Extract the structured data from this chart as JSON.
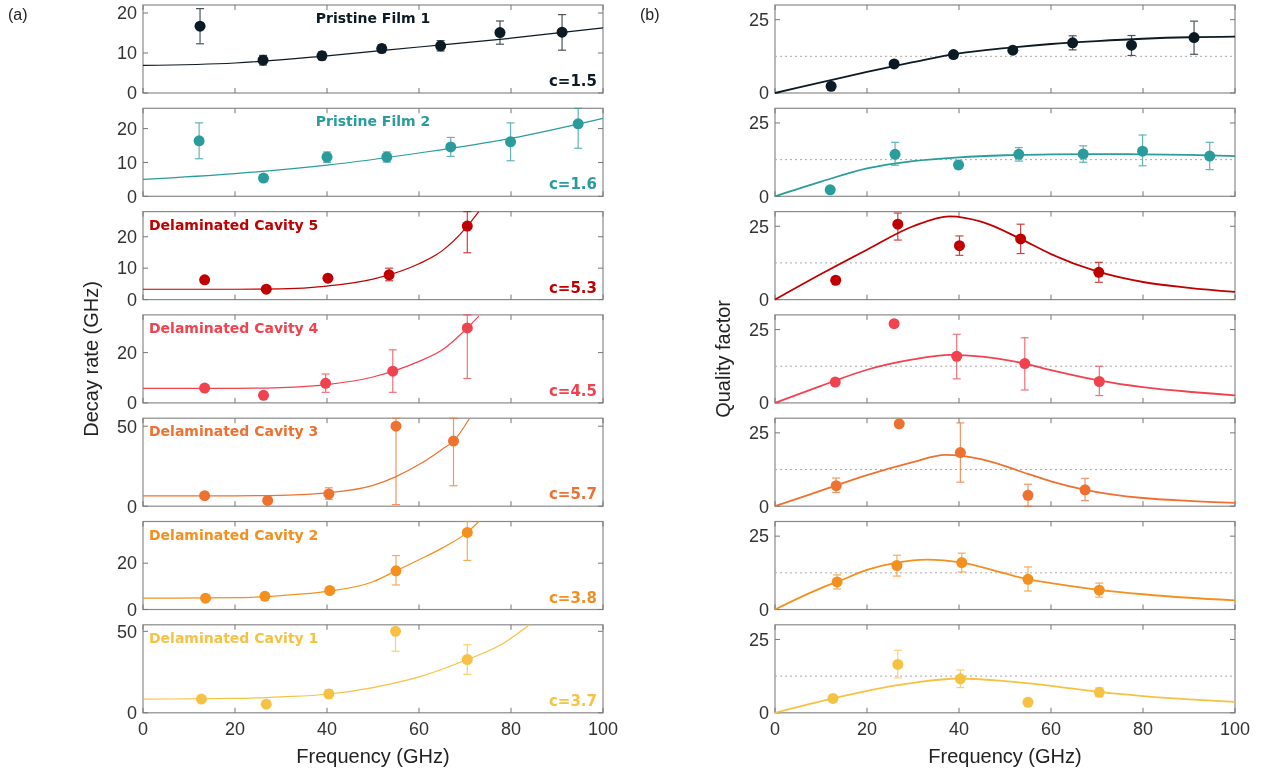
{
  "chart_data": [
    {
      "type": "scatter",
      "title": "(a)",
      "xlim": [
        0,
        100
      ],
      "xticks": [
        0,
        20,
        40,
        60,
        80,
        100
      ],
      "ylim": [
        0,
        22
      ],
      "yticks": [
        0,
        10,
        20
      ],
      "tick_labels": "y",
      "annotations": [
        "c=1.5"
      ],
      "series": [
        {
          "name": "Pristine Film 1",
          "marker": "circle",
          "color": "#0b1a23",
          "x": [
            12.4,
            26.1,
            38.9,
            51.9,
            64.7,
            77.6,
            91.1
          ],
          "values": [
            16.7,
            8.2,
            9.3,
            11.1,
            11.8,
            15.1,
            15.2
          ],
          "errors": [
            [
              12.3,
              21.1
            ],
            [
              7,
              9.4
            ],
            [
              8.3,
              10.3
            ],
            [
              10.1,
              12.1
            ],
            [
              10.5,
              13.1
            ],
            [
              12.2,
              18
            ],
            [
              10.7,
              19.6
            ]
          ]
        },
        {
          "type": "line",
          "color": "#0b1a23",
          "x": [
            0,
            20,
            40,
            60,
            80,
            100
          ],
          "values": [
            6.9,
            7.5,
            9.3,
            11.5,
            13.7,
            16.3
          ]
        }
      ]
    },
    {
      "type": "scatter",
      "xlim": [
        0,
        100
      ],
      "xticks": [
        0,
        20,
        40,
        60,
        80,
        100
      ],
      "ylim": [
        0,
        26
      ],
      "yticks": [
        0,
        10,
        20
      ],
      "tick_labels": "y",
      "annotations": [
        "c=1.6"
      ],
      "series": [
        {
          "name": "Pristine Film 2",
          "marker": "circle",
          "color": "#2a9c9c",
          "x": [
            12.2,
            26.2,
            40,
            53,
            66.9,
            79.9,
            94.6
          ],
          "values": [
            16.4,
            5.4,
            11.6,
            11.6,
            14.6,
            16.1,
            21.4
          ],
          "errors": [
            [
              11.1,
              21.7
            ],
            [
              4.4,
              6.4
            ],
            [
              10,
              13.1
            ],
            [
              10.1,
              13.1
            ],
            [
              11.8,
              17.4
            ],
            [
              10.5,
              21.7
            ],
            [
              14.2,
              26
            ]
          ]
        },
        {
          "type": "line",
          "color": "#2a9c9c",
          "x": [
            0,
            20,
            40,
            60,
            80,
            100
          ],
          "values": [
            5,
            6.7,
            9.2,
            12.8,
            17.1,
            23
          ]
        }
      ]
    },
    {
      "type": "scatter",
      "xlim": [
        0,
        100
      ],
      "xticks": [
        0,
        20,
        40,
        60,
        80,
        100
      ],
      "ylim": [
        0,
        28
      ],
      "yticks": [
        0,
        10,
        20
      ],
      "tick_labels": "y",
      "annotations": [
        "c=5.3"
      ],
      "series": [
        {
          "name": "Delaminated Cavity 5",
          "marker": "circle",
          "color": "#c00000",
          "x": [
            13.4,
            26.8,
            40.2,
            53.5,
            70.5
          ],
          "values": [
            6.3,
            3.3,
            6.8,
            7.9,
            23.4
          ],
          "errors": [
            null,
            null,
            null,
            [
              6,
              10
            ],
            [
              14.9,
              28
            ]
          ]
        },
        {
          "type": "line",
          "color": "#c00000",
          "x": [
            0,
            20,
            30,
            40,
            50,
            60,
            65,
            70,
            73
          ],
          "values": [
            3.3,
            3.3,
            3.4,
            4.3,
            6.5,
            11.4,
            15.5,
            22.5,
            28
          ]
        }
      ]
    },
    {
      "type": "scatter",
      "ylabel": "Decay rate (GHz)",
      "xlim": [
        0,
        100
      ],
      "xticks": [
        0,
        20,
        40,
        60,
        80,
        100
      ],
      "ylim": [
        0,
        35
      ],
      "yticks": [
        0,
        20
      ],
      "tick_labels": "y",
      "annotations": [
        "c=4.5"
      ],
      "series": [
        {
          "name": "Delaminated Cavity 4",
          "marker": "circle",
          "color": "#f0424f",
          "x": [
            13.4,
            26.2,
            39.7,
            54.3,
            70.5
          ],
          "values": [
            5.9,
            3,
            7.8,
            12.6,
            29.8
          ],
          "errors": [
            null,
            null,
            [
              4.2,
              11.5
            ],
            [
              4.2,
              21.1
            ],
            [
              9.7,
              35
            ]
          ]
        },
        {
          "type": "line",
          "color": "#f0424f",
          "x": [
            0,
            20,
            30,
            40,
            50,
            60,
            65,
            70.5,
            73
          ],
          "values": [
            5.8,
            5.8,
            6.1,
            7.3,
            10.3,
            16.5,
            21,
            29.8,
            34.5
          ]
        }
      ]
    },
    {
      "type": "scatter",
      "xlim": [
        0,
        100
      ],
      "xticks": [
        0,
        20,
        40,
        60,
        80,
        100
      ],
      "ylim": [
        0,
        55
      ],
      "yticks": [
        0,
        50
      ],
      "tick_labels": "y",
      "annotations": [
        "c=5.7"
      ],
      "series": [
        {
          "name": "Delaminated Cavity 3",
          "marker": "circle",
          "color": "#ef7130",
          "x": [
            13.4,
            27.1,
            40.4,
            55,
            67.5
          ],
          "values": [
            6.6,
            3.6,
            7.7,
            50,
            40.7
          ],
          "errors": [
            null,
            null,
            [
              4.3,
              11.5
            ],
            [
              1,
              55
            ],
            [
              12.8,
              55
            ]
          ]
        },
        {
          "type": "line",
          "color": "#ef7130",
          "x": [
            0,
            20,
            30,
            40,
            50,
            55,
            60,
            65,
            67.5,
            71
          ],
          "values": [
            6.5,
            6.5,
            6.8,
            8.3,
            13,
            18.5,
            26,
            35.5,
            40.7,
            55
          ]
        }
      ]
    },
    {
      "type": "scatter",
      "xlim": [
        0,
        100
      ],
      "xticks": [
        0,
        20,
        40,
        60,
        80,
        100
      ],
      "ylim": [
        0,
        38
      ],
      "yticks": [
        0,
        20
      ],
      "tick_labels": "y",
      "annotations": [
        "c=3.8"
      ],
      "series": [
        {
          "name": "Delaminated Cavity 2",
          "marker": "circle",
          "color": "#f39020",
          "x": [
            13.6,
            26.5,
            40.6,
            55,
            70.5
          ],
          "values": [
            4.9,
            5.7,
            8.2,
            16.7,
            33.3
          ],
          "errors": [
            null,
            null,
            null,
            [
              10.6,
              23.3
            ],
            [
              21.2,
              38
            ]
          ]
        },
        {
          "type": "line",
          "color": "#f39020",
          "x": [
            0,
            20,
            30,
            40,
            50,
            55,
            60,
            65,
            70.5,
            73
          ],
          "values": [
            4.9,
            5.1,
            6,
            7.8,
            12,
            16.7,
            21.5,
            26.5,
            33.3,
            38
          ]
        }
      ]
    },
    {
      "type": "scatter",
      "xlabel": "Frequency (GHz)",
      "xlim": [
        0,
        100
      ],
      "xticks": [
        0,
        20,
        40,
        60,
        80,
        100
      ],
      "ylim": [
        0,
        54
      ],
      "yticks": [
        0,
        50
      ],
      "annotations": [
        "c=3.7"
      ],
      "series": [
        {
          "name": "Delaminated Cavity 1",
          "marker": "circle",
          "color": "#f7c244",
          "x": [
            12.7,
            26.8,
            40.4,
            54.9,
            70.5
          ],
          "values": [
            8.4,
            5.3,
            11.6,
            50,
            32.7
          ],
          "errors": [
            null,
            null,
            [
              9.1,
              14.1
            ],
            [
              37.8,
              50
            ],
            [
              23.6,
              41.8
            ]
          ]
        },
        {
          "type": "line",
          "color": "#f7c244",
          "x": [
            0,
            20,
            30,
            40,
            50,
            60,
            70.5,
            78,
            84
          ],
          "values": [
            8.4,
            8.8,
            9.8,
            11.4,
            15.5,
            22,
            32.7,
            42,
            54
          ]
        }
      ]
    },
    {
      "type": "scatter",
      "title": "(b)",
      "xlim": [
        0,
        100
      ],
      "xticks": [
        0,
        20,
        40,
        60,
        80,
        100
      ],
      "ylim": [
        0,
        30
      ],
      "yticks": [
        0,
        25
      ],
      "tick_labels": "y",
      "ref_lines": [
        {
          "axis": "y",
          "value": 12.5,
          "color": "#aaaaaa",
          "line_style": "dotted"
        }
      ],
      "series": [
        {
          "marker": "circle",
          "color": "#0b1a23",
          "x": [
            12.2,
            25.9,
            38.8,
            51.7,
            64.7,
            77.5,
            91.1
          ],
          "values": [
            2.3,
            9.9,
            13.1,
            14.6,
            17.1,
            16.3,
            18.9
          ],
          "errors": [
            null,
            [
              8.9,
              10.9
            ],
            [
              12.1,
              14.1
            ],
            [
              13.6,
              15.6
            ],
            [
              14.7,
              19.5
            ],
            [
              12.8,
              19.6
            ],
            [
              13.2,
              24.5
            ]
          ]
        },
        {
          "type": "line",
          "color": "#0b1a23",
          "x": [
            0,
            10,
            20,
            30,
            40,
            50,
            60,
            70,
            80,
            90,
            100
          ],
          "values": [
            0,
            3.6,
            7.2,
            10.5,
            13.5,
            15.3,
            16.7,
            17.7,
            18.5,
            19,
            19.2
          ]
        }
      ]
    },
    {
      "type": "scatter",
      "xlim": [
        0,
        100
      ],
      "xticks": [
        0,
        20,
        40,
        60,
        80,
        100
      ],
      "ylim": [
        0,
        30
      ],
      "yticks": [
        0,
        25
      ],
      "tick_labels": "y",
      "ref_lines": [
        {
          "axis": "y",
          "value": 12.5,
          "color": "#aaaaaa",
          "line_style": "dotted"
        }
      ],
      "series": [
        {
          "marker": "circle",
          "color": "#2a9c9c",
          "x": [
            12,
            26.1,
            39.9,
            53,
            67,
            79.9,
            94.5
          ],
          "values": [
            2.2,
            14.3,
            10.7,
            14.3,
            14.4,
            15.4,
            13.7
          ],
          "errors": [
            null,
            [
              10.6,
              18.4
            ],
            [
              9.4,
              12
            ],
            [
              12,
              16.6
            ],
            [
              11.6,
              17.2
            ],
            [
              10.4,
              20.9
            ],
            [
              9.1,
              18.4
            ]
          ]
        },
        {
          "type": "line",
          "color": "#2a9c9c",
          "x": [
            0,
            10,
            20,
            30,
            40,
            50,
            60,
            70,
            80,
            90,
            100
          ],
          "values": [
            0,
            5,
            9.5,
            12,
            13.3,
            14,
            14.3,
            14.4,
            14.3,
            14.1,
            13.7
          ]
        }
      ]
    },
    {
      "type": "scatter",
      "xlim": [
        0,
        100
      ],
      "xticks": [
        0,
        20,
        40,
        60,
        80,
        100
      ],
      "ylim": [
        0,
        30
      ],
      "yticks": [
        0,
        25
      ],
      "tick_labels": "y",
      "ref_lines": [
        {
          "axis": "y",
          "value": 12.5,
          "color": "#aaaaaa",
          "line_style": "dotted"
        }
      ],
      "series": [
        {
          "marker": "circle",
          "color": "#c00000",
          "x": [
            13.2,
            26.7,
            40.1,
            53.4,
            70.4
          ],
          "values": [
            6.6,
            25.7,
            18.4,
            20.7,
            9.3
          ],
          "errors": [
            null,
            [
              20.3,
              29.5
            ],
            [
              15.1,
              21.7
            ],
            [
              15.7,
              25.7
            ],
            [
              5.9,
              12.7
            ]
          ]
        },
        {
          "type": "line",
          "color": "#c00000",
          "x": [
            0,
            10,
            20,
            30,
            38,
            45,
            53.4,
            60,
            70,
            80,
            90,
            100
          ],
          "values": [
            0,
            8.7,
            17,
            25,
            28.4,
            26.5,
            20.7,
            15.5,
            9.6,
            6,
            4,
            2.6
          ]
        }
      ]
    },
    {
      "type": "scatter",
      "ylabel": "Quality factor",
      "xlim": [
        0,
        100
      ],
      "xticks": [
        0,
        20,
        40,
        60,
        80,
        100
      ],
      "ylim": [
        0,
        30
      ],
      "yticks": [
        0,
        25
      ],
      "tick_labels": "y",
      "ref_lines": [
        {
          "axis": "y",
          "value": 12.5,
          "color": "#aaaaaa",
          "line_style": "dotted"
        }
      ],
      "series": [
        {
          "marker": "circle",
          "color": "#f0424f",
          "x": [
            13.1,
            25.9,
            39.5,
            54.3,
            70.5
          ],
          "values": [
            7.1,
            27,
            15.9,
            13.4,
            7.3
          ],
          "errors": [
            [
              5.9,
              8.3
            ],
            null,
            [
              8.2,
              23.4
            ],
            [
              4.4,
              22.2
            ],
            [
              2.5,
              12.5
            ]
          ]
        },
        {
          "type": "line",
          "color": "#f0424f",
          "x": [
            0,
            10,
            20,
            30,
            38,
            45,
            54.3,
            60,
            70,
            80,
            90,
            100
          ],
          "values": [
            0,
            5.8,
            11.3,
            14.8,
            16.4,
            15.8,
            13.4,
            11.2,
            7.8,
            5.4,
            3.8,
            2.6
          ]
        }
      ]
    },
    {
      "type": "scatter",
      "xlim": [
        0,
        100
      ],
      "xticks": [
        0,
        20,
        40,
        60,
        80,
        100
      ],
      "ylim": [
        0,
        30
      ],
      "yticks": [
        0,
        25
      ],
      "tick_labels": "y",
      "ref_lines": [
        {
          "axis": "y",
          "value": 12.5,
          "color": "#aaaaaa",
          "line_style": "dotted"
        }
      ],
      "series": [
        {
          "marker": "circle",
          "color": "#ef7130",
          "x": [
            13.3,
            27,
            40.3,
            55,
            67.4
          ],
          "values": [
            7,
            28.1,
            18.3,
            3.7,
            5.6
          ],
          "errors": [
            [
              4.7,
              9.6
            ],
            null,
            [
              8.2,
              28.4
            ],
            [
              0,
              7.5
            ],
            [
              1.9,
              9.5
            ]
          ]
        },
        {
          "type": "line",
          "color": "#ef7130",
          "x": [
            0,
            10,
            20,
            30,
            37,
            45,
            55,
            60,
            67.4,
            80,
            90,
            100
          ],
          "values": [
            0,
            5.3,
            10.6,
            15,
            17.5,
            16,
            11,
            8.5,
            5.6,
            2.8,
            1.8,
            1.1
          ]
        }
      ]
    },
    {
      "type": "scatter",
      "xlim": [
        0,
        100
      ],
      "xticks": [
        0,
        20,
        40,
        60,
        80,
        100
      ],
      "ylim": [
        0,
        30
      ],
      "yticks": [
        0,
        25
      ],
      "tick_labels": "y",
      "ref_lines": [
        {
          "axis": "y",
          "value": 12.5,
          "color": "#aaaaaa",
          "line_style": "dotted"
        }
      ],
      "series": [
        {
          "marker": "circle",
          "color": "#f39020",
          "x": [
            13.5,
            26.5,
            40.6,
            55,
            70.5
          ],
          "values": [
            9.4,
            15,
            16,
            10.3,
            6.6
          ],
          "errors": [
            [
              7,
              11.8
            ],
            [
              11.4,
              18.5
            ],
            [
              12.8,
              19.2
            ],
            [
              6.3,
              14.5
            ],
            [
              4.2,
              9
            ]
          ]
        },
        {
          "type": "line",
          "color": "#f39020",
          "x": [
            0,
            10,
            13.5,
            20,
            26.5,
            33,
            40.6,
            50,
            55,
            60,
            70,
            80,
            90,
            100
          ],
          "values": [
            0,
            7.3,
            9.4,
            13.5,
            16,
            17,
            16,
            12.3,
            10.3,
            9,
            6.8,
            5.2,
            4,
            3.1
          ]
        }
      ]
    },
    {
      "type": "scatter",
      "xlabel": "Frequency (GHz)",
      "xlim": [
        0,
        100
      ],
      "xticks": [
        0,
        20,
        40,
        60,
        80,
        100
      ],
      "ylim": [
        0,
        30
      ],
      "yticks": [
        0,
        25
      ],
      "ref_lines": [
        {
          "axis": "y",
          "value": 12.5,
          "color": "#aaaaaa",
          "line_style": "dotted"
        }
      ],
      "series": [
        {
          "marker": "circle",
          "color": "#f7c244",
          "x": [
            12.6,
            26.7,
            40.3,
            55,
            70.5
          ],
          "values": [
            4.9,
            16.5,
            11.6,
            3.6,
            7
          ],
          "errors": [
            null,
            [
              11.9,
              21.3
            ],
            [
              8.6,
              14.6
            ],
            null,
            [
              5.5,
              8.5
            ]
          ]
        },
        {
          "type": "line",
          "color": "#f7c244",
          "x": [
            0,
            12.6,
            20,
            30,
            40,
            50,
            60,
            70,
            80,
            90,
            100
          ],
          "values": [
            0,
            4.9,
            7.5,
            10.2,
            11.7,
            10.8,
            9.2,
            7.2,
            5.7,
            4.6,
            3.7
          ]
        }
      ]
    }
  ]
}
